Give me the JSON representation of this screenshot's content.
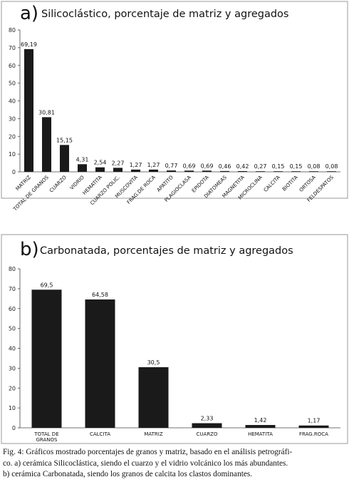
{
  "chart_data": [
    {
      "type": "bar",
      "panel_letter": "a)",
      "title": "Silicoclástico, porcentaje de matriz y agregados",
      "categories": [
        "MATRIZ",
        "TOTAL DE GRANOS",
        "CUARZO",
        "VIDRIO",
        "HEMATITA",
        "CUARZO POLIC.",
        "MUSCOVITA",
        "FRAG.DE ROCA",
        "APATITO",
        "PLAGIOCLASA",
        "EPIDOTA",
        "DIATOMEAS",
        "MAGNETITA",
        "MICROCLINA",
        "CALCITA",
        "BIOTITA",
        "ORTOSA",
        "FELDESPATOS"
      ],
      "values": [
        69.19,
        30.81,
        15.15,
        4.31,
        2.54,
        2.27,
        1.27,
        1.27,
        0.77,
        0.69,
        0.69,
        0.46,
        0.42,
        0.27,
        0.15,
        0.15,
        0.08,
        0.08
      ],
      "value_labels": [
        "69,19",
        "30,81",
        "15,15",
        "4,31",
        "2,54",
        "2,27",
        "1,27",
        "1,27",
        "0,77",
        "0,69",
        "0,69",
        "0,46",
        "0,42",
        "0,27",
        "0,15",
        "0,15",
        "0,08",
        "0,08"
      ],
      "ylim": [
        0,
        80
      ],
      "yticks": [
        0,
        10,
        20,
        30,
        40,
        50,
        60,
        70,
        80
      ],
      "xlabel": "",
      "ylabel": "",
      "grid": false,
      "bar_color": "#1a1a1a"
    },
    {
      "type": "bar",
      "panel_letter": "b)",
      "title": "Carbonatada, porcentajes de matriz y agregados",
      "categories": [
        "TOTAL DE\nGRANOS",
        "CALCITA",
        "MATRIZ",
        "CUARZO",
        "HEMATITA",
        "FRAG.ROCA"
      ],
      "values": [
        69.5,
        64.58,
        30.5,
        2.33,
        1.42,
        1.17
      ],
      "value_labels": [
        "69,5",
        "64,58",
        "30,5",
        "2,33",
        "1,42",
        "1,17"
      ],
      "ylim": [
        0,
        80
      ],
      "yticks": [
        0,
        10,
        20,
        30,
        40,
        50,
        60,
        70,
        80
      ],
      "xlabel": "",
      "ylabel": "",
      "grid": false,
      "bar_color": "#1a1a1a"
    }
  ],
  "caption": {
    "line1": "Fig. 4: Gráficos mostrado porcentajes de granos y matriz, basado en el análisis petrográfi-",
    "line2": "co. a) cerámica Silicoclástica, siendo el cuarzo y el vidrio volcánico los más abundantes.",
    "line3": "b) cerámica Carbonatada, siendo los granos de calcita los clastos dominantes."
  }
}
